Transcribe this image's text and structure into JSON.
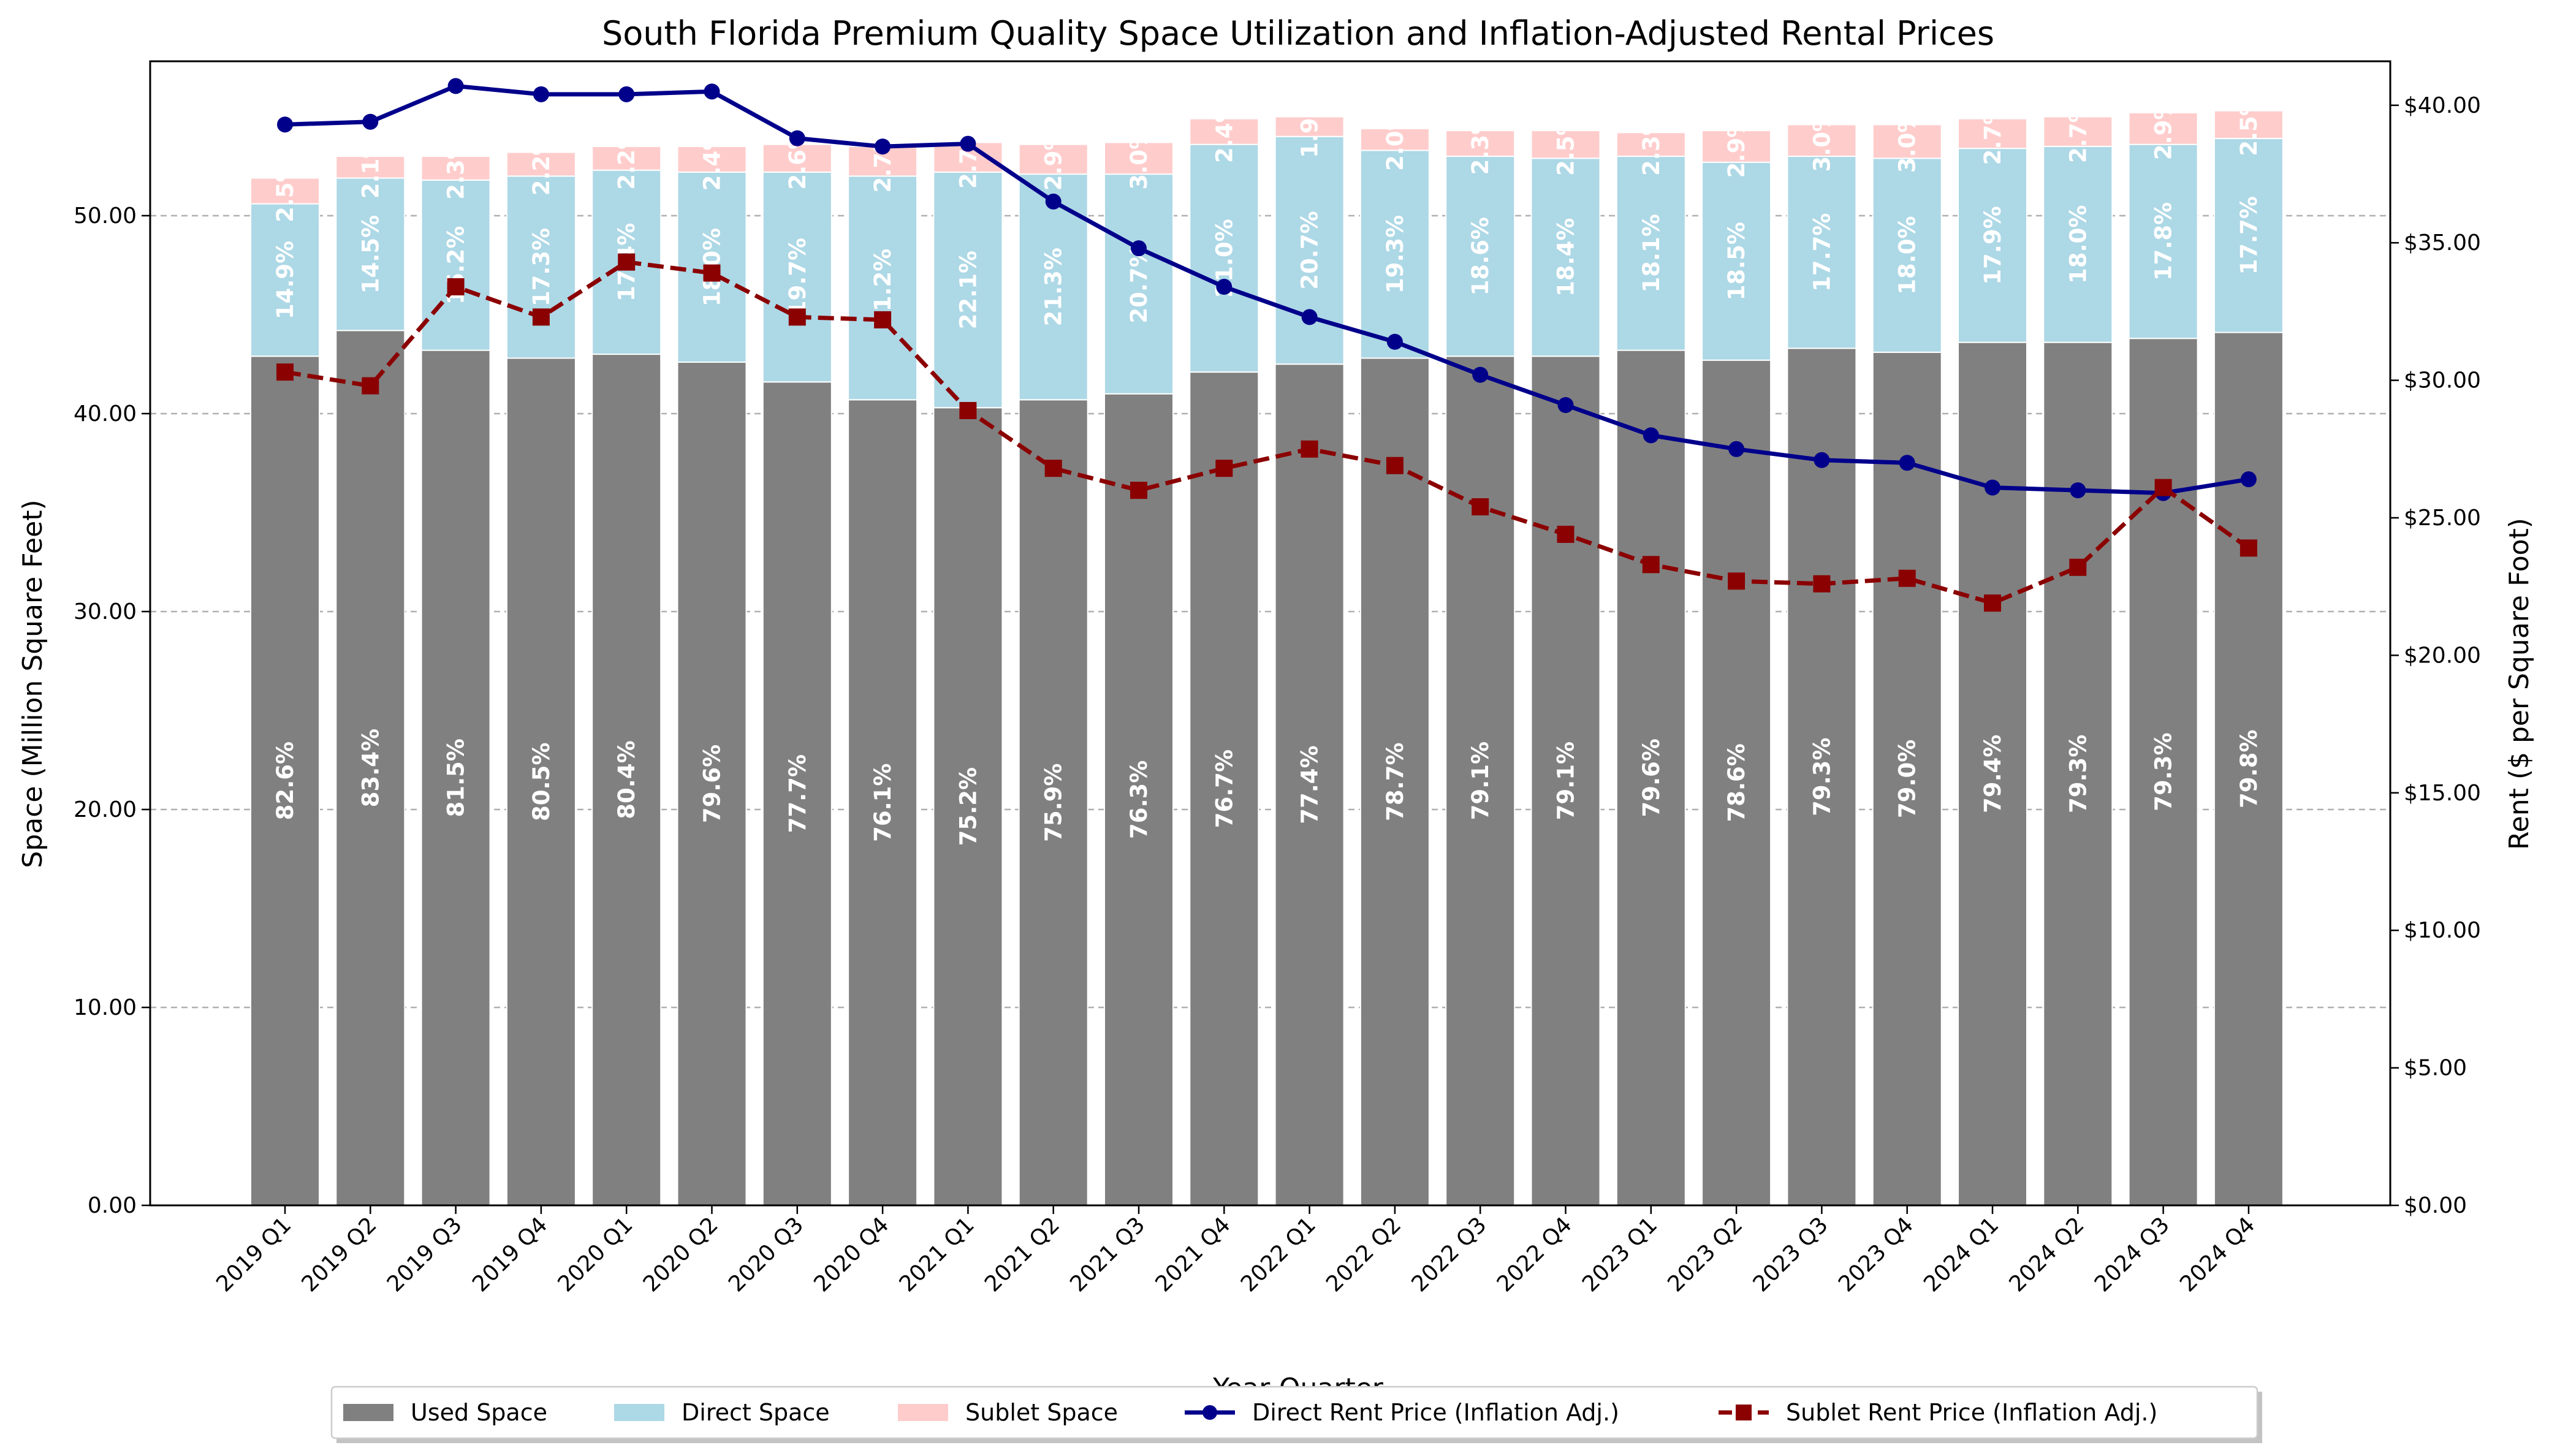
{
  "chart_data": {
    "type": "bar",
    "title": "South Florida Premium Quality Space Utilization and Inflation-Adjusted Rental Prices",
    "xlabel": "Year-Quarter",
    "ylabel_left": "Space (Million Square Feet)",
    "ylabel_right": "Rent ($ per Square Foot)",
    "ylim_left": [
      0,
      57.8
    ],
    "ylim_right": [
      0,
      41.6
    ],
    "left_ticks": [
      "0.00",
      "10.00",
      "20.00",
      "30.00",
      "40.00",
      "50.00"
    ],
    "right_ticks": [
      "$0.00",
      "$5.00",
      "$10.00",
      "$15.00",
      "$20.00",
      "$25.00",
      "$30.00",
      "$35.00",
      "$40.00"
    ],
    "grid": true,
    "legend_position": "bottom-center",
    "categories": [
      "2019 Q1",
      "2019 Q2",
      "2019 Q3",
      "2019 Q4",
      "2020 Q1",
      "2020 Q2",
      "2020 Q3",
      "2020 Q4",
      "2021 Q1",
      "2021 Q2",
      "2021 Q3",
      "2021 Q4",
      "2022 Q1",
      "2022 Q2",
      "2022 Q3",
      "2022 Q4",
      "2023 Q1",
      "2023 Q2",
      "2023 Q3",
      "2023 Q4",
      "2024 Q1",
      "2024 Q2",
      "2024 Q3",
      "2024 Q4"
    ],
    "series": [
      {
        "name": "Used Space",
        "kind": "bar",
        "color": "#808080",
        "values": [
          42.9,
          44.2,
          43.2,
          42.8,
          43.0,
          42.6,
          41.6,
          40.7,
          40.3,
          40.7,
          41.0,
          42.1,
          42.5,
          42.8,
          42.9,
          42.9,
          43.2,
          42.7,
          43.3,
          43.1,
          43.6,
          43.6,
          43.8,
          44.1
        ],
        "labels": [
          "82.6%",
          "83.4%",
          "81.5%",
          "80.5%",
          "80.4%",
          "79.6%",
          "77.7%",
          "76.1%",
          "75.2%",
          "75.9%",
          "76.3%",
          "76.7%",
          "77.4%",
          "78.7%",
          "79.1%",
          "79.1%",
          "79.6%",
          "78.6%",
          "79.3%",
          "79.0%",
          "79.4%",
          "79.3%",
          "79.3%",
          "79.8%"
        ]
      },
      {
        "name": "Direct Space",
        "kind": "bar",
        "color": "#add8e6",
        "values": [
          7.7,
          7.7,
          8.6,
          9.2,
          9.3,
          9.6,
          10.6,
          11.3,
          11.9,
          11.4,
          11.1,
          11.5,
          11.5,
          10.5,
          10.1,
          10.0,
          9.8,
          10.0,
          9.7,
          9.8,
          9.8,
          9.9,
          9.8,
          9.8
        ],
        "labels": [
          "14.9%",
          "14.5%",
          "16.2%",
          "17.3%",
          "17.4%",
          "18.0%",
          "19.7%",
          "21.2%",
          "22.1%",
          "21.3%",
          "20.7%",
          "21.0%",
          "20.7%",
          "19.3%",
          "18.6%",
          "18.4%",
          "18.1%",
          "18.5%",
          "17.7%",
          "18.0%",
          "17.9%",
          "18.0%",
          "17.8%",
          "17.7%"
        ]
      },
      {
        "name": "Sublet Space",
        "kind": "bar",
        "color": "#ffcccc",
        "values": [
          1.3,
          1.1,
          1.2,
          1.2,
          1.2,
          1.3,
          1.4,
          1.5,
          1.5,
          1.5,
          1.6,
          1.3,
          1.0,
          1.1,
          1.3,
          1.4,
          1.2,
          1.6,
          1.6,
          1.7,
          1.5,
          1.5,
          1.6,
          1.4
        ],
        "labels": [
          "2.5%",
          "2.1%",
          "2.3%",
          "2.2%",
          "2.2%",
          "2.4%",
          "2.6%",
          "2.7%",
          "2.7%",
          "2.9%",
          "3.0%",
          "2.4%",
          "1.9%",
          "2.0%",
          "2.3%",
          "2.5%",
          "2.3%",
          "2.9%",
          "3.0%",
          "3.0%",
          "2.7%",
          "2.7%",
          "2.9%",
          "2.5%"
        ]
      },
      {
        "name": "Direct Rent Price (Inflation Adj.)",
        "kind": "line",
        "color": "#00008b",
        "marker": "circle",
        "dash": "solid",
        "values": [
          39.3,
          39.4,
          40.7,
          40.4,
          40.4,
          40.5,
          38.8,
          38.5,
          38.6,
          36.5,
          34.8,
          33.4,
          32.3,
          31.4,
          30.2,
          29.1,
          28.0,
          27.5,
          27.1,
          27.0,
          26.1,
          26.0,
          25.9,
          26.4
        ]
      },
      {
        "name": "Sublet Rent Price (Inflation Adj.)",
        "kind": "line",
        "color": "#8b0000",
        "marker": "square",
        "dash": "dashed",
        "values": [
          30.3,
          29.8,
          33.4,
          32.3,
          34.3,
          33.9,
          32.3,
          32.2,
          28.9,
          26.8,
          26.0,
          26.8,
          27.5,
          26.9,
          25.4,
          24.4,
          23.3,
          22.7,
          22.6,
          22.8,
          21.9,
          23.2,
          26.1,
          23.9
        ]
      }
    ]
  }
}
